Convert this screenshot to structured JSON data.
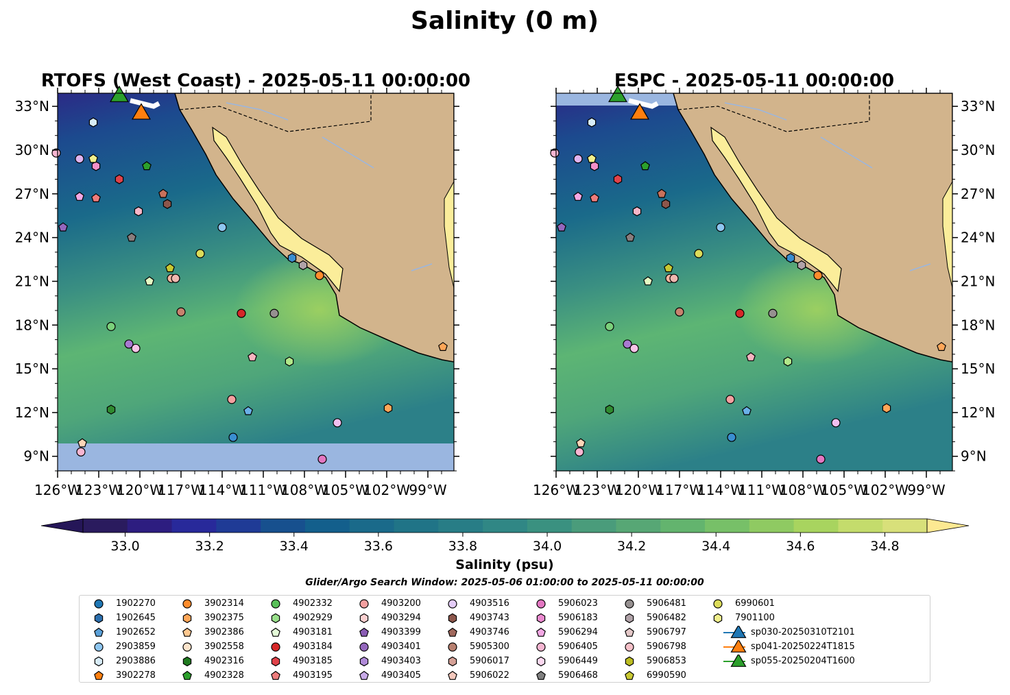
{
  "figure": {
    "suptitle": "Salinity (0 m)",
    "search_window": "Glider/Argo Search Window: 2025-05-06 01:00:00 to 2025-05-11 00:00:00"
  },
  "chart_data": [
    {
      "type": "heatmap",
      "title": "RTOFS (West Coast) - 2025-05-11 00:00:00",
      "x_ticks": [
        "126°W",
        "123°W",
        "120°W",
        "117°W",
        "114°W",
        "111°W",
        "108°W",
        "105°W",
        "102°W",
        "99°W"
      ],
      "y_ticks": [
        "9°N",
        "12°N",
        "15°N",
        "18°N",
        "21°N",
        "24°N",
        "27°N",
        "30°N",
        "33°N"
      ],
      "xlim": [
        -126,
        -97.1
      ],
      "ylim": [
        8,
        33.9
      ],
      "no_data_band_below_lat": 10.2
    },
    {
      "type": "heatmap",
      "title": "ESPC - 2025-05-11 00:00:00",
      "x_ticks": [
        "126°W",
        "123°W",
        "120°W",
        "117°W",
        "114°W",
        "111°W",
        "108°W",
        "105°W",
        "102°W",
        "99°W"
      ],
      "y_ticks": [
        "9°N",
        "12°N",
        "15°N",
        "18°N",
        "21°N",
        "24°N",
        "27°N",
        "30°N",
        "33°N"
      ],
      "xlim": [
        -126,
        -97.1
      ],
      "ylim": [
        8,
        33.9
      ],
      "no_data_band_above_lat": 33.2
    }
  ],
  "colorbar": {
    "label": "Salinity (psu)",
    "range": [
      32.9,
      34.9
    ],
    "ticks": [
      "33.0",
      "33.2",
      "33.4",
      "33.6",
      "33.8",
      "34.0",
      "34.2",
      "34.4",
      "34.6",
      "34.8"
    ],
    "colors": [
      "#2a1b5e",
      "#2d1d80",
      "#28299a",
      "#1f3b96",
      "#17508e",
      "#135f8c",
      "#1a6a8a",
      "#207487",
      "#287d86",
      "#308785",
      "#3a9180",
      "#4a9c7b",
      "#57a775",
      "#63b46e",
      "#77c068",
      "#8fca62",
      "#a8d45f",
      "#c4dc6c",
      "#d8e07a"
    ],
    "extend_low": "#251658",
    "extend_high": "#fde992"
  },
  "map_colors": {
    "land": "#d2b48c",
    "gulf_water": "#fbed9a",
    "no_data": "#9ab6e0",
    "river": "#9ab6e0"
  },
  "floats": [
    {
      "lon": -126.1,
      "lat": 29.8,
      "color": "#f7b6d2",
      "marker": "circle"
    },
    {
      "lon": -124.4,
      "lat": 29.4,
      "color": "#e0b4f0",
      "marker": "circle"
    },
    {
      "lon": -123.2,
      "lat": 28.9,
      "color": "#f48fc8",
      "marker": "hexagon"
    },
    {
      "lon": -123.4,
      "lat": 29.4,
      "color": "#f1f08c",
      "marker": "pentagon"
    },
    {
      "lon": -121.5,
      "lat": 28.0,
      "color": "#e0424a",
      "marker": "hexagon"
    },
    {
      "lon": -119.5,
      "lat": 28.9,
      "color": "#2ca02c",
      "marker": "pentagon"
    },
    {
      "lon": -124.4,
      "lat": 26.8,
      "color": "#f4a8e4",
      "marker": "pentagon"
    },
    {
      "lon": -123.2,
      "lat": 26.7,
      "color": "#ee7c7c",
      "marker": "pentagon"
    },
    {
      "lon": -118.3,
      "lat": 27.0,
      "color": "#c8715c",
      "marker": "pentagon"
    },
    {
      "lon": -118.0,
      "lat": 26.3,
      "color": "#8c564b",
      "marker": "hexagon"
    },
    {
      "lon": -120.1,
      "lat": 25.8,
      "color": "#f7b6c8",
      "marker": "hexagon"
    },
    {
      "lon": -125.6,
      "lat": 24.7,
      "color": "#9467bd",
      "marker": "pentagon"
    },
    {
      "lon": -120.6,
      "lat": 24.0,
      "color": "#8a7d7d",
      "marker": "pentagon"
    },
    {
      "lon": -114.0,
      "lat": 24.7,
      "color": "#8ec6f0",
      "marker": "circle"
    },
    {
      "lon": -115.6,
      "lat": 22.9,
      "color": "#dcdc5a",
      "marker": "circle"
    },
    {
      "lon": -117.8,
      "lat": 21.9,
      "color": "#c8c832",
      "marker": "pentagon"
    },
    {
      "lon": -119.3,
      "lat": 21.0,
      "color": "#e4fbc4",
      "marker": "pentagon"
    },
    {
      "lon": -117.7,
      "lat": 21.2,
      "color": "#f7b6a0",
      "marker": "circle"
    },
    {
      "lon": -117.4,
      "lat": 21.2,
      "color": "#f0b8b0",
      "marker": "circle"
    },
    {
      "lon": -108.9,
      "lat": 22.6,
      "color": "#3a8ed0",
      "marker": "hexagon"
    },
    {
      "lon": -108.1,
      "lat": 22.1,
      "color": "#b0a2a8",
      "marker": "hexagon"
    },
    {
      "lon": -106.9,
      "lat": 21.4,
      "color": "#ff8c2c",
      "marker": "circle"
    },
    {
      "lon": -117.0,
      "lat": 18.9,
      "color": "#c8826e",
      "marker": "circle"
    },
    {
      "lon": -112.6,
      "lat": 18.8,
      "color": "#d62728",
      "marker": "circle"
    },
    {
      "lon": -110.2,
      "lat": 18.8,
      "color": "#969090",
      "marker": "circle"
    },
    {
      "lon": -122.1,
      "lat": 17.9,
      "color": "#7bd07b",
      "marker": "circle"
    },
    {
      "lon": -120.8,
      "lat": 16.7,
      "color": "#a87ad0",
      "marker": "circle"
    },
    {
      "lon": -120.3,
      "lat": 16.4,
      "color": "#f8c4e8",
      "marker": "circle"
    },
    {
      "lon": -111.8,
      "lat": 15.8,
      "color": "#f6b4c0",
      "marker": "pentagon"
    },
    {
      "lon": -109.1,
      "lat": 15.5,
      "color": "#b2e88a",
      "marker": "hexagon"
    },
    {
      "lon": -97.9,
      "lat": 16.5,
      "color": "#ffa658",
      "marker": "pentagon"
    },
    {
      "lon": -113.3,
      "lat": 12.9,
      "color": "#f4a0a0",
      "marker": "circle"
    },
    {
      "lon": -122.1,
      "lat": 12.2,
      "color": "#2f8a2f",
      "marker": "hexagon"
    },
    {
      "lon": -112.1,
      "lat": 12.1,
      "color": "#6ab0e8",
      "marker": "pentagon"
    },
    {
      "lon": -101.9,
      "lat": 12.3,
      "color": "#ffa658",
      "marker": "hexagon"
    },
    {
      "lon": -113.2,
      "lat": 10.3,
      "color": "#3a8ed0",
      "marker": "circle"
    },
    {
      "lon": -105.6,
      "lat": 11.3,
      "color": "#f0c0f0",
      "marker": "circle"
    },
    {
      "lon": -124.2,
      "lat": 9.9,
      "color": "#fcd6b8",
      "marker": "pentagon"
    },
    {
      "lon": -124.3,
      "lat": 9.3,
      "color": "#f7b6d2",
      "marker": "circle"
    },
    {
      "lon": -106.7,
      "lat": 8.8,
      "color": "#e377c2",
      "marker": "circle"
    },
    {
      "lon": -123.4,
      "lat": 31.9,
      "color": "#d8ecf8",
      "marker": "hexagon"
    }
  ],
  "gliders": [
    {
      "lon": -119.9,
      "lat": 32.6,
      "color": "#ff7f0e"
    },
    {
      "lon": -121.5,
      "lat": 33.8,
      "color": "#2ca02c"
    }
  ],
  "legend": {
    "items": [
      {
        "label": "1902270",
        "color": "#1f77b4",
        "marker": "circle"
      },
      {
        "label": "1902645",
        "color": "#2c6fae",
        "marker": "hexagon"
      },
      {
        "label": "1902652",
        "color": "#5aa0d8",
        "marker": "pentagon"
      },
      {
        "label": "2903859",
        "color": "#8ec6f0",
        "marker": "circle"
      },
      {
        "label": "2903886",
        "color": "#d8ecf8",
        "marker": "hexagon"
      },
      {
        "label": "3902278",
        "color": "#ff7f0e",
        "marker": "pentagon"
      },
      {
        "label": "3902314",
        "color": "#ff8c2c",
        "marker": "circle"
      },
      {
        "label": "3902375",
        "color": "#ffa658",
        "marker": "hexagon"
      },
      {
        "label": "3902386",
        "color": "#ffc890",
        "marker": "pentagon"
      },
      {
        "label": "3902558",
        "color": "#fde4cc",
        "marker": "circle"
      },
      {
        "label": "4902316",
        "color": "#1f7a1f",
        "marker": "hexagon"
      },
      {
        "label": "4902328",
        "color": "#2ca02c",
        "marker": "pentagon"
      },
      {
        "label": "4902332",
        "color": "#58c058",
        "marker": "circle"
      },
      {
        "label": "4902929",
        "color": "#98df8a",
        "marker": "hexagon"
      },
      {
        "label": "4903181",
        "color": "#e4fbd8",
        "marker": "pentagon"
      },
      {
        "label": "4903184",
        "color": "#d62728",
        "marker": "circle"
      },
      {
        "label": "4903185",
        "color": "#e0424a",
        "marker": "hexagon"
      },
      {
        "label": "4903195",
        "color": "#ee7c7c",
        "marker": "pentagon"
      },
      {
        "label": "4903200",
        "color": "#f4a0a0",
        "marker": "circle"
      },
      {
        "label": "4903294",
        "color": "#fcd0d0",
        "marker": "hexagon"
      },
      {
        "label": "4903399",
        "color": "#8a5cb4",
        "marker": "pentagon"
      },
      {
        "label": "4903401",
        "color": "#9467bd",
        "marker": "circle"
      },
      {
        "label": "4903403",
        "color": "#b08ad8",
        "marker": "hexagon"
      },
      {
        "label": "4903405",
        "color": "#c8aae8",
        "marker": "pentagon"
      },
      {
        "label": "4903516",
        "color": "#e4ccf8",
        "marker": "circle"
      },
      {
        "label": "4903743",
        "color": "#8c564b",
        "marker": "hexagon"
      },
      {
        "label": "4903746",
        "color": "#a0685c",
        "marker": "pentagon"
      },
      {
        "label": "5905300",
        "color": "#b88070",
        "marker": "circle"
      },
      {
        "label": "5906017",
        "color": "#d4a096",
        "marker": "hexagon"
      },
      {
        "label": "5906022",
        "color": "#f4c8bc",
        "marker": "pentagon"
      },
      {
        "label": "5906023",
        "color": "#e377c2",
        "marker": "circle"
      },
      {
        "label": "5906183",
        "color": "#ec8ad0",
        "marker": "hexagon"
      },
      {
        "label": "5906294",
        "color": "#f4a8e4",
        "marker": "pentagon"
      },
      {
        "label": "5906405",
        "color": "#f7b6d2",
        "marker": "circle"
      },
      {
        "label": "5906449",
        "color": "#fcd8f0",
        "marker": "hexagon"
      },
      {
        "label": "5906468",
        "color": "#7f7f7f",
        "marker": "pentagon"
      },
      {
        "label": "5906481",
        "color": "#969090",
        "marker": "circle"
      },
      {
        "label": "5906482",
        "color": "#b0a2a8",
        "marker": "hexagon"
      },
      {
        "label": "5906797",
        "color": "#e4c8c8",
        "marker": "pentagon"
      },
      {
        "label": "5906798",
        "color": "#f6c0c8",
        "marker": "circle"
      },
      {
        "label": "5906853",
        "color": "#bcbd22",
        "marker": "hexagon"
      },
      {
        "label": "6990590",
        "color": "#c8c832",
        "marker": "pentagon"
      },
      {
        "label": "6990601",
        "color": "#dcdc5a",
        "marker": "circle"
      },
      {
        "label": "7901100",
        "color": "#f1f08c",
        "marker": "hexagon"
      },
      {
        "label": "sp030-20250310T2101",
        "color": "#1f77b4",
        "marker": "triangle"
      },
      {
        "label": "sp041-20250224T1815",
        "color": "#ff7f0e",
        "marker": "triangle"
      },
      {
        "label": "sp055-20250204T1600",
        "color": "#2ca02c",
        "marker": "triangle"
      }
    ]
  }
}
